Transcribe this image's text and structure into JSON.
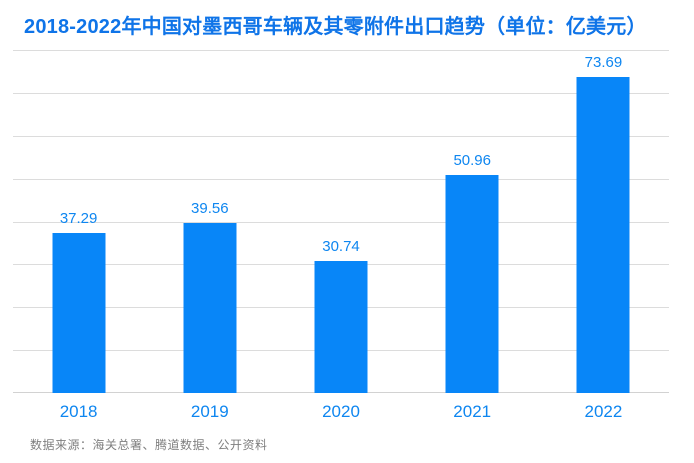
{
  "title": "2018-2022年中国对墨西哥车辆及其零附件出口趋势（单位：亿美元）",
  "footer": {
    "source": "数据来源：海关总署、腾道数据、公开资料"
  },
  "colors": {
    "background": "#FFFFFF",
    "title": "#0F74E8",
    "bar": "#0886F8",
    "value_label": "#0E86F0",
    "axis_label": "#0E86F0",
    "gridline": "#DCDCDC",
    "baseline": "#D2D2D2",
    "source_text": "#7F7F7F"
  },
  "chart_data": {
    "type": "bar",
    "title": "2018-2022年中国对墨西哥车辆及其零附件出口趋势（单位：亿美元）",
    "unit": "亿美元",
    "categories": [
      "2018",
      "2019",
      "2020",
      "2021",
      "2022"
    ],
    "values": [
      37.29,
      39.56,
      30.74,
      50.96,
      73.69
    ],
    "data_labels": [
      "37.29",
      "39.56",
      "30.74",
      "50.96",
      "73.69"
    ],
    "xlabel": "",
    "ylabel": "",
    "ylim": [
      0,
      80
    ],
    "grid_step": 10,
    "grid": true,
    "legend": false,
    "y_tick_labels_shown": false
  }
}
